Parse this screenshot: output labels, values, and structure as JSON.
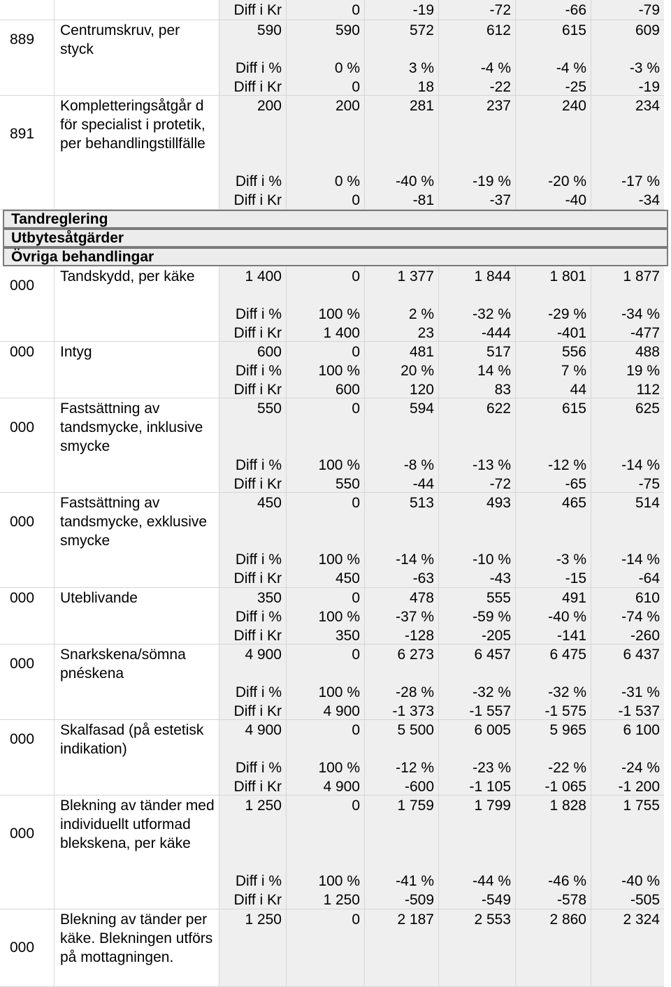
{
  "labels": {
    "diff_pct": "Diff i %",
    "diff_kr": "Diff i Kr"
  },
  "top_row": {
    "label": "Diff i Kr",
    "values": [
      "0",
      "-19",
      "-72",
      "-66",
      "-79"
    ]
  },
  "groups_a": [
    {
      "code": "889",
      "name": "Centrumskruv, per styck",
      "values": [
        "590",
        "590",
        "572",
        "612",
        "615",
        "609"
      ],
      "pct": [
        "0 %",
        "3 %",
        "-4 %",
        "-4 %",
        "-3 %"
      ],
      "kr": [
        "0",
        "18",
        "-22",
        "-25",
        "-19"
      ]
    },
    {
      "code": "891",
      "name": "Kompletteringsåtgår d för specialist i protetik, per behandlingstillfälle",
      "values": [
        "200",
        "200",
        "281",
        "237",
        "240",
        "234"
      ],
      "pct": [
        "0 %",
        "-40 %",
        "-19 %",
        "-20 %",
        "-17 %"
      ],
      "kr": [
        "0",
        "-81",
        "-37",
        "-40",
        "-34"
      ]
    }
  ],
  "sections": [
    "Tandreglering",
    "Utbytesåtgärder",
    "Övriga behandlingar"
  ],
  "groups_b": [
    {
      "code": "000",
      "name": "Tandskydd, per käke",
      "values": [
        "1 400",
        "0",
        "1 377",
        "1 844",
        "1 801",
        "1 877"
      ],
      "pct": [
        "100 %",
        "2 %",
        "-32 %",
        "-29 %",
        "-34 %"
      ],
      "kr": [
        "1 400",
        "23",
        "-444",
        "-401",
        "-477"
      ]
    },
    {
      "code": "000",
      "name": "Intyg",
      "values": [
        "600",
        "0",
        "481",
        "517",
        "556",
        "488"
      ],
      "pct": [
        "100 %",
        "20 %",
        "14 %",
        "7 %",
        "19 %"
      ],
      "kr": [
        "600",
        "120",
        "83",
        "44",
        "112"
      ]
    },
    {
      "code": "000",
      "name": "Fastsättning av tandsmycke, inklusive smycke",
      "values": [
        "550",
        "0",
        "594",
        "622",
        "615",
        "625"
      ],
      "pct": [
        "100 %",
        "-8 %",
        "-13 %",
        "-12 %",
        "-14 %"
      ],
      "kr": [
        "550",
        "-44",
        "-72",
        "-65",
        "-75"
      ]
    },
    {
      "code": "000",
      "name": "Fastsättning av tandsmycke, exklusive smycke",
      "values": [
        "450",
        "0",
        "513",
        "493",
        "465",
        "514"
      ],
      "pct": [
        "100 %",
        "-14 %",
        "-10 %",
        "-3 %",
        "-14 %"
      ],
      "kr": [
        "450",
        "-63",
        "-43",
        "-15",
        "-64"
      ]
    },
    {
      "code": "000",
      "name": "Uteblivande",
      "values": [
        "350",
        "0",
        "478",
        "555",
        "491",
        "610"
      ],
      "pct": [
        "100 %",
        "-37 %",
        "-59 %",
        "-40 %",
        "-74 %"
      ],
      "kr": [
        "350",
        "-128",
        "-205",
        "-141",
        "-260"
      ]
    },
    {
      "code": "000",
      "name": "Snarkskena/sömna pnéskena",
      "values": [
        "4 900",
        "0",
        "6 273",
        "6 457",
        "6 475",
        "6 437"
      ],
      "pct": [
        "100 %",
        "-28 %",
        "-32 %",
        "-32 %",
        "-31 %"
      ],
      "kr": [
        "4 900",
        "-1 373",
        "-1 557",
        "-1 575",
        "-1 537"
      ]
    },
    {
      "code": "000",
      "name": "Skalfasad (på estetisk indikation)",
      "values": [
        "4 900",
        "0",
        "5 500",
        "6 005",
        "5 965",
        "6 100"
      ],
      "pct": [
        "100 %",
        "-12 %",
        "-23 %",
        "-22 %",
        "-24 %"
      ],
      "kr": [
        "4 900",
        "-600",
        "-1 105",
        "-1 065",
        "-1 200"
      ]
    },
    {
      "code": "000",
      "name": "Blekning av tänder med individuellt utformad blekskena, per käke",
      "values": [
        "1 250",
        "0",
        "1 759",
        "1 799",
        "1 828",
        "1 755"
      ],
      "pct": [
        "100 %",
        "-41 %",
        "-44 %",
        "-46 %",
        "-40 %"
      ],
      "kr": [
        "1 250",
        "-509",
        "-549",
        "-578",
        "-505"
      ]
    }
  ],
  "last_group": {
    "code": "000",
    "name": "Blekning av tänder per käke. Blekningen utförs på mottagningen.",
    "values": [
      "1 250",
      "0",
      "2 187",
      "2 553",
      "2 860",
      "2 324"
    ]
  }
}
